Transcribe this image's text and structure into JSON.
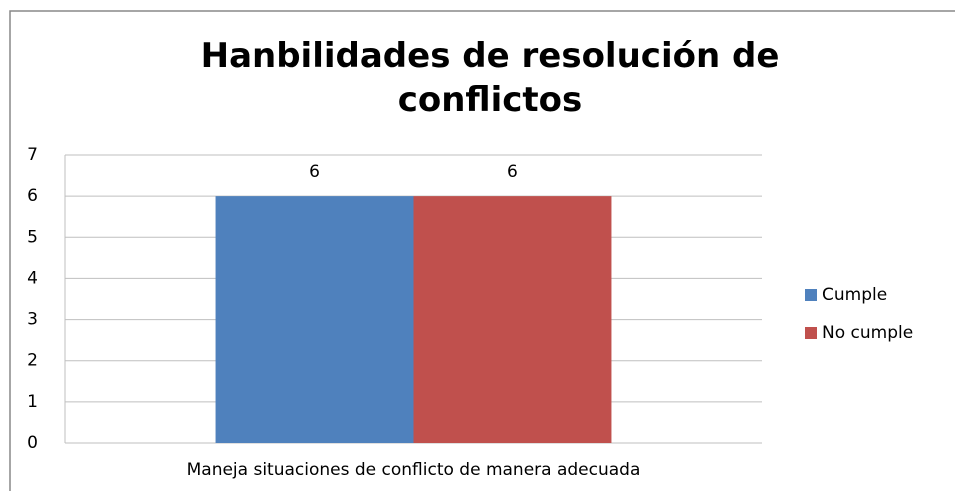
{
  "chart_data": {
    "type": "bar",
    "title": "Hanbilidades de resolución de conflictos",
    "categories": [
      "Maneja situaciones de conflicto de manera adecuada"
    ],
    "series": [
      {
        "name": "Cumple",
        "color": "#4f81bd",
        "values": [
          6
        ]
      },
      {
        "name": "No cumple",
        "color": "#c0504d",
        "values": [
          6
        ]
      }
    ],
    "ylim": [
      0,
      7
    ],
    "yticks": [
      0,
      1,
      2,
      3,
      4,
      5,
      6,
      7
    ],
    "grid": true,
    "legend": "right"
  }
}
